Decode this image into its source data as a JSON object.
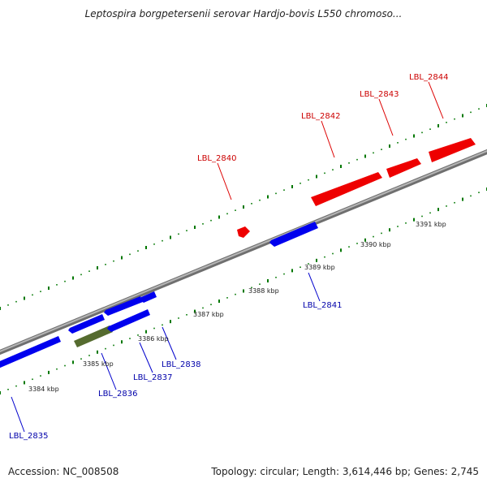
{
  "title": "Leptospira borgpetersenii serovar Hardjo-bovis L550 chromoso...",
  "footer": {
    "accession": "Accession: NC_008508",
    "summary": "Topology: circular; Length: 3,614,446 bp; Genes: 2,745"
  },
  "colors": {
    "forward_gene": "#ff0000",
    "reverse_gene": "#0000ff",
    "rna_gene": "#6b8e23",
    "backbone": "#8c8c8c",
    "tick": "#007700",
    "forward_label": "#cc0000",
    "reverse_label": "#0000aa"
  },
  "axis": {
    "unit": "kbp",
    "tick_labels": [
      "3384 kbp",
      "3385 kbp",
      "3386 kbp",
      "3387 kbp",
      "3388 kbp",
      "3389 kbp",
      "3390 kbp",
      "3391 kbp"
    ]
  },
  "genes": [
    {
      "name": "LBL_2835",
      "strand": "reverse",
      "start_kbp": 3383.85,
      "end_kbp": 3384.8,
      "labeled": true
    },
    {
      "name": "LBL_2836",
      "strand": "reverse",
      "start_kbp": 3385.05,
      "end_kbp": 3385.5,
      "labeled": true
    },
    {
      "name": "LBL_2837",
      "strand": "reverse",
      "start_kbp": 3385.6,
      "end_kbp": 3386.05,
      "labeled": true
    },
    {
      "name": "LBL_2838",
      "strand": "reverse",
      "start_kbp": 3386.1,
      "end_kbp": 3386.25,
      "labeled": true
    },
    {
      "name": "",
      "strand": "reverse",
      "start_kbp": 3385.05,
      "end_kbp": 3385.45,
      "labeled": false,
      "kind": "rna"
    },
    {
      "name": "",
      "strand": "reverse",
      "start_kbp": 3385.55,
      "end_kbp": 3386.0,
      "labeled": false
    },
    {
      "name": "LBL_2840",
      "strand": "forward",
      "start_kbp": 3388.3,
      "end_kbp": 3388.38,
      "labeled": true
    },
    {
      "name": "LBL_2841",
      "strand": "reverse",
      "start_kbp": 3388.65,
      "end_kbp": 3389.2,
      "labeled": true
    },
    {
      "name": "LBL_2842",
      "strand": "forward",
      "start_kbp": 3389.0,
      "end_kbp": 3390.1,
      "labeled": true
    },
    {
      "name": "LBL_2843",
      "strand": "forward",
      "start_kbp": 3390.2,
      "end_kbp": 3390.7,
      "labeled": true
    },
    {
      "name": "LBL_2844",
      "strand": "forward",
      "start_kbp": 3390.85,
      "end_kbp": 3391.45,
      "labeled": true
    }
  ]
}
